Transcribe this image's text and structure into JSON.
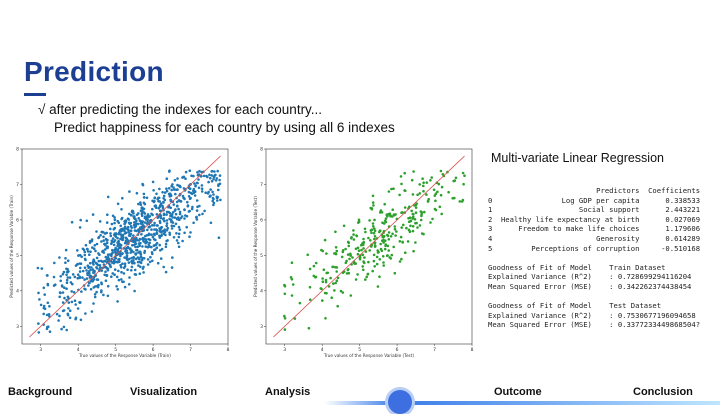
{
  "slide": {
    "title": "Prediction",
    "bullet_line1": "√ after predicting the indexes for each country...",
    "bullet_line2": "Predict happiness for each country by using all 6 indexes"
  },
  "model": {
    "title": "Multi-variate Linear Regression",
    "coefficients_header": [
      "Predictors",
      "Coefficients"
    ],
    "coefficients": [
      {
        "idx": "0",
        "predictor": "Log GDP per capita",
        "coef": "0.338533"
      },
      {
        "idx": "1",
        "predictor": "Social support",
        "coef": "2.443221"
      },
      {
        "idx": "2",
        "predictor": "Healthy life expectancy at birth",
        "coef": "0.027069"
      },
      {
        "idx": "3",
        "predictor": "Freedom to make life choices",
        "coef": "1.179606"
      },
      {
        "idx": "4",
        "predictor": "Generosity",
        "coef": "0.614289"
      },
      {
        "idx": "5",
        "predictor": "Perceptions of corruption",
        "coef": "-0.510168"
      }
    ],
    "train": {
      "header_left": "Goodness of Fit of Model",
      "header_right": "Train Dataset",
      "ev_label": "Explained Variance (R^2)",
      "ev_value": ": 0.728699294116204",
      "mse_label": "Mean Squared Error (MSE)",
      "mse_value": ": 0.342262374438454"
    },
    "test": {
      "header_left": "Goodness of Fit of Model",
      "header_right": "Test Dataset",
      "ev_label": "Explained Variance (R^2)",
      "ev_value": ": 0.7530677196094658",
      "mse_label": "Mean Squared Error (MSE)",
      "mse_value": ": 0.3377233449868504?"
    }
  },
  "nav": {
    "items": [
      "Background",
      "Visualization",
      "Analysis",
      "Outcome",
      "Conclusion"
    ]
  },
  "chart_data": [
    {
      "type": "scatter",
      "xlabel": "True values of the Response Variable (Train)",
      "ylabel": "Predicted values of the Response Variable (Train)",
      "xlim": [
        2.5,
        8
      ],
      "ylim": [
        2.5,
        8
      ],
      "x_ticks": [
        "3",
        "4",
        "5",
        "6",
        "7",
        "8"
      ],
      "y_ticks": [
        "3",
        "4",
        "5",
        "6",
        "7",
        "8"
      ],
      "point_color": "#1f77b4",
      "line_color": "#d9534f",
      "reference_line": "y = x",
      "n_points": 1000
    },
    {
      "type": "scatter",
      "xlabel": "True values of the Response Variable (Test)",
      "ylabel": "Predicted values of the Response Variable (Test)",
      "xlim": [
        2.5,
        8
      ],
      "ylim": [
        2.5,
        8
      ],
      "x_ticks": [
        "3",
        "4",
        "5",
        "6",
        "7",
        "8"
      ],
      "y_ticks": [
        "3",
        "4",
        "5",
        "6",
        "7",
        "8"
      ],
      "point_color": "#2ca02c",
      "line_color": "#d9534f",
      "reference_line": "y = x",
      "n_points": 350
    }
  ]
}
